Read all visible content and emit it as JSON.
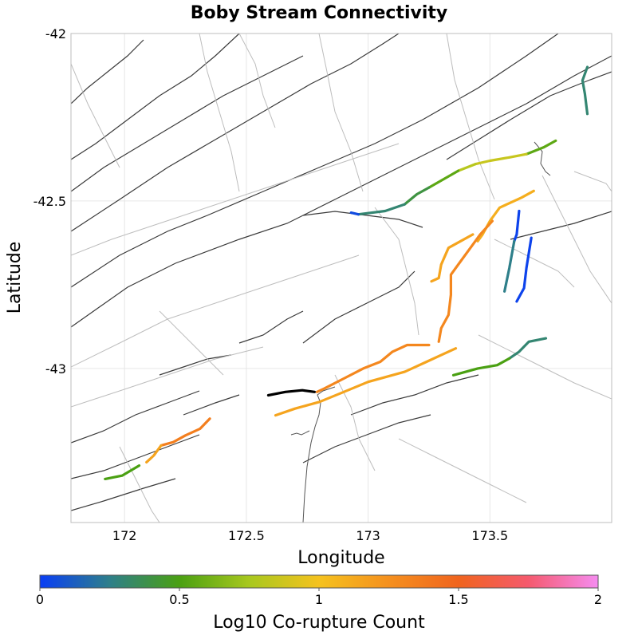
{
  "title": "Boby Stream Connectivity",
  "x_axis": {
    "label": "Longitude",
    "ticks": [
      {
        "value": 172,
        "label": "172"
      },
      {
        "value": 172.5,
        "label": "172.5"
      },
      {
        "value": 173,
        "label": "173"
      },
      {
        "value": 173.5,
        "label": "173.5"
      }
    ],
    "range": [
      171.78,
      174.0
    ]
  },
  "y_axis": {
    "label": "Latitude",
    "ticks": [
      {
        "value": -42,
        "label": "-42"
      },
      {
        "value": -42.5,
        "label": "-42.5"
      },
      {
        "value": -43,
        "label": "-43"
      }
    ],
    "range": [
      -43.46,
      -42.0
    ]
  },
  "colorbar": {
    "label": "Log10 Co-rupture Count",
    "ticks": [
      {
        "value": 0,
        "label": "0"
      },
      {
        "value": 0.5,
        "label": "0.5"
      },
      {
        "value": 1,
        "label": "1"
      },
      {
        "value": 1.5,
        "label": "1.5"
      },
      {
        "value": 2,
        "label": "2"
      }
    ],
    "range": [
      0,
      2
    ],
    "stops": [
      {
        "value": 0,
        "color": "#0a3ef5"
      },
      {
        "value": 0.25,
        "color": "#2e7f8a"
      },
      {
        "value": 0.5,
        "color": "#4aa012"
      },
      {
        "value": 0.75,
        "color": "#a8c81e"
      },
      {
        "value": 1.0,
        "color": "#f5c21e"
      },
      {
        "value": 1.25,
        "color": "#f5901e"
      },
      {
        "value": 1.5,
        "color": "#f0641e"
      },
      {
        "value": 1.75,
        "color": "#f55a6e"
      },
      {
        "value": 2.0,
        "color": "#f58cf0"
      }
    ]
  },
  "source_fault": {
    "name": "Boby Stream",
    "color": "#000000",
    "coords": [
      [
        172.59,
        -43.08
      ],
      [
        172.66,
        -43.07
      ],
      [
        172.73,
        -43.065
      ],
      [
        172.78,
        -43.07
      ]
    ]
  },
  "connected_faults": [
    {
      "value": 0.3,
      "coords": [
        [
          173.9,
          -42.1
        ],
        [
          173.88,
          -42.14
        ],
        [
          173.89,
          -42.18
        ],
        [
          173.9,
          -42.24
        ]
      ]
    },
    {
      "value": 0.55,
      "coords": [
        [
          173.77,
          -42.32
        ],
        [
          173.72,
          -42.34
        ],
        [
          173.65,
          -42.36
        ]
      ]
    },
    {
      "value": 0.85,
      "coords": [
        [
          173.65,
          -42.36
        ],
        [
          173.58,
          -42.37
        ],
        [
          173.5,
          -42.38
        ],
        [
          173.44,
          -42.39
        ]
      ]
    },
    {
      "value": 0.8,
      "coords": [
        [
          173.44,
          -42.39
        ],
        [
          173.37,
          -42.41
        ]
      ]
    },
    {
      "value": 0.55,
      "coords": [
        [
          173.37,
          -42.41
        ],
        [
          173.25,
          -42.46
        ]
      ]
    },
    {
      "value": 0.4,
      "coords": [
        [
          173.25,
          -42.46
        ],
        [
          173.2,
          -42.48
        ],
        [
          173.15,
          -42.51
        ]
      ]
    },
    {
      "value": 0.3,
      "coords": [
        [
          173.15,
          -42.51
        ],
        [
          173.07,
          -42.53
        ],
        [
          172.96,
          -42.54
        ]
      ]
    },
    {
      "value": 0.05,
      "coords": [
        [
          172.96,
          -42.54
        ],
        [
          172.93,
          -42.535
        ]
      ]
    },
    {
      "value": 1.1,
      "coords": [
        [
          173.68,
          -42.47
        ],
        [
          173.63,
          -42.49
        ],
        [
          173.54,
          -42.52
        ],
        [
          173.5,
          -42.56
        ],
        [
          173.47,
          -42.6
        ],
        [
          173.45,
          -42.62
        ]
      ]
    },
    {
      "value": 1.3,
      "coords": [
        [
          173.51,
          -42.56
        ],
        [
          173.46,
          -42.6
        ],
        [
          173.42,
          -42.64
        ],
        [
          173.38,
          -42.68
        ],
        [
          173.34,
          -42.72
        ],
        [
          173.34,
          -42.78
        ],
        [
          173.33,
          -42.84
        ],
        [
          173.3,
          -42.88
        ],
        [
          173.29,
          -42.92
        ]
      ]
    },
    {
      "value": 1.15,
      "coords": [
        [
          173.43,
          -42.6
        ],
        [
          173.38,
          -42.62
        ],
        [
          173.33,
          -42.64
        ],
        [
          173.3,
          -42.69
        ],
        [
          173.29,
          -42.73
        ],
        [
          173.26,
          -42.74
        ]
      ]
    },
    {
      "value": 0.02,
      "coords": [
        [
          173.62,
          -42.53
        ],
        [
          173.61,
          -42.6
        ],
        [
          173.6,
          -42.62
        ]
      ]
    },
    {
      "value": 0.25,
      "coords": [
        [
          173.6,
          -42.62
        ],
        [
          173.58,
          -42.7
        ],
        [
          173.56,
          -42.77
        ]
      ]
    },
    {
      "value": 0.02,
      "coords": [
        [
          173.67,
          -42.61
        ],
        [
          173.65,
          -42.7
        ],
        [
          173.64,
          -42.76
        ],
        [
          173.61,
          -42.8
        ]
      ]
    },
    {
      "value": 1.3,
      "coords": [
        [
          173.25,
          -42.93
        ],
        [
          173.16,
          -42.93
        ],
        [
          173.1,
          -42.95
        ],
        [
          173.05,
          -42.98
        ],
        [
          172.98,
          -43.0
        ],
        [
          172.9,
          -43.03
        ],
        [
          172.82,
          -43.06
        ],
        [
          172.79,
          -43.07
        ]
      ]
    },
    {
      "value": 1.15,
      "coords": [
        [
          173.36,
          -42.94
        ],
        [
          173.3,
          -42.96
        ],
        [
          173.24,
          -42.98
        ],
        [
          173.15,
          -43.01
        ],
        [
          173.0,
          -43.04
        ],
        [
          172.9,
          -43.07
        ],
        [
          172.8,
          -43.1
        ],
        [
          172.7,
          -43.12
        ],
        [
          172.62,
          -43.14
        ]
      ]
    },
    {
      "value": 0.3,
      "coords": [
        [
          173.73,
          -42.91
        ],
        [
          173.66,
          -42.92
        ],
        [
          173.62,
          -42.95
        ],
        [
          173.58,
          -42.97
        ]
      ]
    },
    {
      "value": 0.5,
      "coords": [
        [
          173.58,
          -42.97
        ],
        [
          173.53,
          -42.99
        ],
        [
          173.45,
          -43.0
        ],
        [
          173.35,
          -43.02
        ]
      ]
    },
    {
      "value": 1.35,
      "coords": [
        [
          172.35,
          -43.15
        ],
        [
          172.31,
          -43.18
        ],
        [
          172.25,
          -43.2
        ],
        [
          172.2,
          -43.22
        ],
        [
          172.15,
          -43.23
        ]
      ]
    },
    {
      "value": 1.15,
      "coords": [
        [
          172.15,
          -43.23
        ],
        [
          172.12,
          -43.26
        ],
        [
          172.09,
          -43.28
        ]
      ]
    },
    {
      "value": 0.5,
      "coords": [
        [
          172.06,
          -43.29
        ],
        [
          171.99,
          -43.32
        ],
        [
          171.92,
          -43.33
        ]
      ]
    }
  ]
}
